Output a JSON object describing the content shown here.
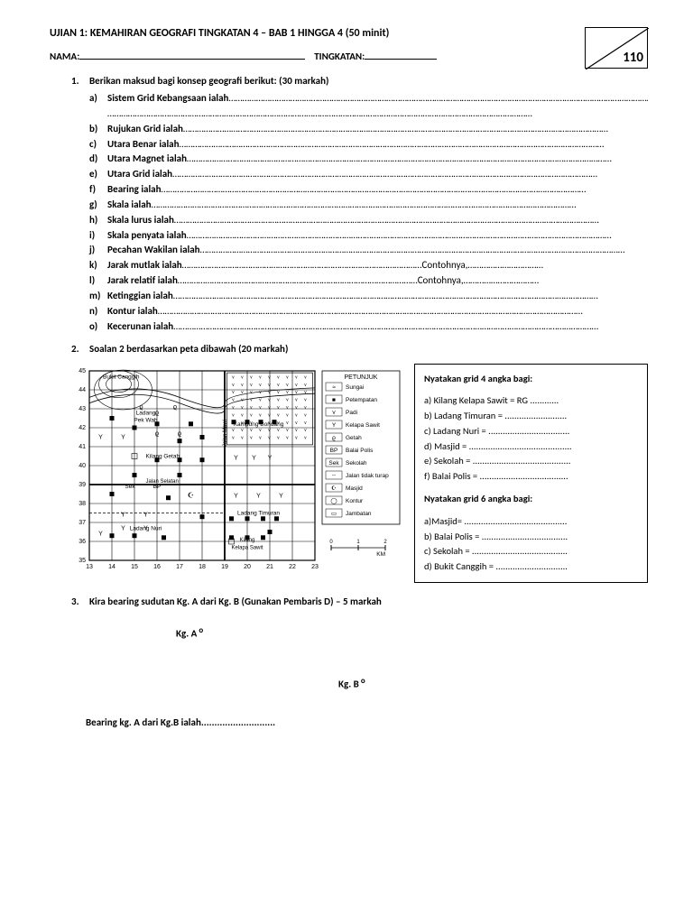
{
  "title": "UJIAN 1: KEMAHIRAN GEOGRAFI TINGKATAN 4 – BAB 1 HINGGA 4 (50 minit)",
  "name_label": "NAMA:",
  "tingkatan_label": "TINGKATAN:",
  "total_score": "110",
  "q1": {
    "num": "1.",
    "prompt": "Berikan maksud bagi konsep geografi berikut: (30 markah)",
    "items": [
      {
        "l": "a)",
        "t": "Sistem Grid Kebangsaan ialah",
        "extra": true
      },
      {
        "l": "b)",
        "t": "Rujukan Grid ialah"
      },
      {
        "l": "c)",
        "t": "Utara Benar ialah"
      },
      {
        "l": "d)",
        "t": "Utara Magnet ialah"
      },
      {
        "l": "e)",
        "t": "Utara Grid ialah"
      },
      {
        "l": "f)",
        "t": "Bearing ialah"
      },
      {
        "l": "g)",
        "t": "Skala ialah"
      },
      {
        "l": "h)",
        "t": "Skala lurus ialah"
      },
      {
        "l": "i)",
        "t": "Skala penyata ialah"
      },
      {
        "l": "j)",
        "t": "Pecahan Wakilan ialah"
      },
      {
        "l": "k)",
        "t": "Jarak mutlak ialah",
        "suffix": "Contohnya,"
      },
      {
        "l": "l)",
        "t": "Jarak relatif ialah",
        "suffix": "Contohnya,"
      },
      {
        "l": "m)",
        "t": "Ketinggian ialah"
      },
      {
        "l": "n)",
        "t": "Kontur ialah"
      },
      {
        "l": "o)",
        "t": "Kecerunan ialah"
      }
    ]
  },
  "q2": {
    "num": "2.",
    "prompt": "Soalan 2 berdasarkan peta dibawah (20 markah)",
    "grid4_header": "Nyatakan grid 4 angka bagi:",
    "grid4_items": [
      "a) Kilang Kelapa Sawit = RG ............",
      "b) Ladang Timuran = ..........................",
      "c) Ladang Nuri = ..................................",
      "d) Masjid = ...........................................",
      "e) Sekolah = .........................................",
      "f) Balai Polis = ....................................."
    ],
    "grid6_header": "Nyatakan grid 6 angka bagi:",
    "grid6_items": [
      "a)Masjid= ...........................................",
      "b) Balai Polis = ....................................",
      "c) Sekolah = ........................................",
      "d) Bukit Canggih = .............................."
    ],
    "map": {
      "x_labels": [
        "13",
        "14",
        "15",
        "16",
        "17",
        "18",
        "19",
        "20",
        "21",
        "22",
        "23"
      ],
      "y_labels": [
        "35",
        "36",
        "37",
        "38",
        "39",
        "40",
        "41",
        "42",
        "43",
        "44",
        "45"
      ],
      "places": {
        "bukit": "Bukit Canggih",
        "ladang_pek": "Ladang\nPek Wah",
        "kampung": "Kampung Bondang",
        "kilang_getah": "Kilang Getah",
        "sek": "Sek",
        "bp": "BP",
        "jalan": "Jalan Selatan",
        "ladang_nuri": "Ladang Nuri",
        "ladang_tim": "Ladang Timuran",
        "kilang_ks": "Kilang\nKelapa Sawit",
        "jalan_mawi": "Jalan Mawi"
      },
      "legend_title": "PETUNJUK",
      "legend": [
        "Sungai",
        "Petempatan",
        "Padi",
        "Kelapa Sawit",
        "Getah",
        "Balai Polis",
        "Sekolah",
        "Jalan tidak turap",
        "Masjid",
        "Kontur",
        "Jambatan"
      ],
      "legend_codes": [
        "",
        "",
        "",
        "Y",
        "ϱ",
        "BP",
        "Sek",
        "",
        "",
        "",
        ""
      ],
      "scale_label": "KM",
      "scale_vals": [
        "0",
        "1",
        "2"
      ]
    }
  },
  "q3": {
    "num": "3.",
    "prompt": "Kira bearing sudutan Kg. A dari Kg. B (Gunakan Pembaris D) – 5 markah",
    "ptA": "Kg. A",
    "ptB": "Kg. B",
    "answer": "Bearing  kg. A dari Kg.B ialah............................"
  },
  "dots_fill": "……………………………………………………………………………………………………………………………………………………………………"
}
